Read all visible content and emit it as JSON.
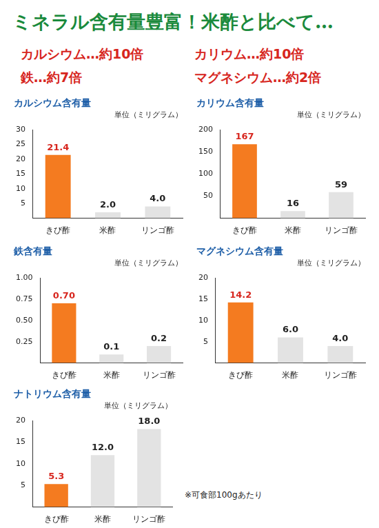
{
  "title": "ミネラル含有量豊富！米酢と比べて…",
  "annotations": [
    "カルシウム…約10倍",
    "カリウム…約10倍",
    "鉄…約7倍",
    "マグネシウム…約2倍"
  ],
  "note": "※可食部100gあたり",
  "chart_data": [
    {
      "type": "bar",
      "title": "カルシウム含有量",
      "subtitle": "単位（ミリグラム）",
      "categories": [
        "きび酢",
        "米酢",
        "リンゴ酢"
      ],
      "values": [
        21.4,
        2.0,
        4.0
      ],
      "value_labels": [
        "21.4",
        "2.0",
        "4.0"
      ],
      "colors": [
        "#f47b20",
        "#e3e3e3",
        "#e3e3e3"
      ],
      "ylim": [
        0,
        30
      ],
      "yticks": [
        5,
        10,
        15,
        20,
        25,
        30
      ],
      "grid": false,
      "data_labels": true
    },
    {
      "type": "bar",
      "title": "カリウム含有量",
      "subtitle": "単位（ミリグラム）",
      "categories": [
        "きび酢",
        "米酢",
        "リンゴ酢"
      ],
      "values": [
        167,
        16,
        59
      ],
      "colors": [
        "#f47b20",
        "#e3e3e3",
        "#e3e3e3"
      ],
      "ylim": [
        0,
        200
      ],
      "yticks": [
        50,
        100,
        150,
        200
      ],
      "grid": false,
      "data_labels": true
    },
    {
      "type": "bar",
      "title": "鉄含有量",
      "subtitle": "単位（ミリグラム）",
      "categories": [
        "きび酢",
        "米酢",
        "リンゴ酢"
      ],
      "values": [
        0.7,
        0.1,
        0.2
      ],
      "value_labels": [
        "0.70",
        "0.1",
        "0.2"
      ],
      "colors": [
        "#f47b20",
        "#e3e3e3",
        "#e3e3e3"
      ],
      "ylim": [
        0,
        1
      ],
      "yticks": [
        0.25,
        {
          "value": 0.5,
          "label": "0.50"
        },
        0.75,
        {
          "value": 1,
          "label": "1.00"
        }
      ],
      "grid": false,
      "data_labels": true
    },
    {
      "type": "bar",
      "title": "マグネシウム含有量",
      "subtitle": "単位（ミリグラム）",
      "categories": [
        "きび酢",
        "米酢",
        "リンゴ酢"
      ],
      "values": [
        14.2,
        6.0,
        4.0
      ],
      "value_labels": [
        "14.2",
        "6.0",
        "4.0"
      ],
      "colors": [
        "#f47b20",
        "#e3e3e3",
        "#e3e3e3"
      ],
      "ylim": [
        0,
        20
      ],
      "yticks": [
        5,
        10,
        15,
        20
      ],
      "grid": false,
      "data_labels": true
    },
    {
      "type": "bar",
      "title": "ナトリウム含有量",
      "subtitle": "単位（ミリグラム）",
      "categories": [
        "きび酢",
        "米酢",
        "リンゴ酢"
      ],
      "values": [
        5.3,
        12.0,
        18.0
      ],
      "value_labels": [
        "5.3",
        "12.0",
        "18.0"
      ],
      "colors": [
        "#f47b20",
        "#e3e3e3",
        "#e3e3e3"
      ],
      "ylim": [
        0,
        20
      ],
      "yticks": [
        5,
        10,
        15,
        20
      ],
      "grid": false,
      "data_labels": true
    }
  ]
}
